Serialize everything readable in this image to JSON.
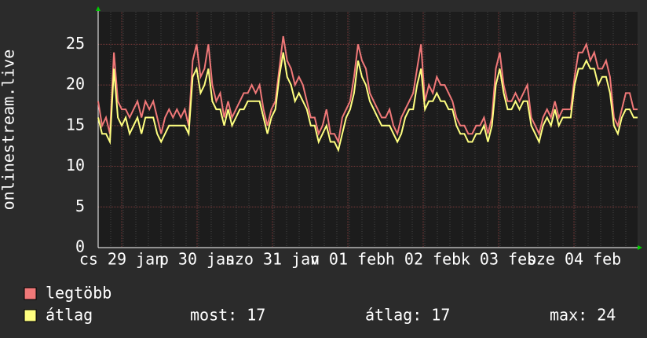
{
  "chart_data": {
    "type": "line",
    "y_label": "onlinestream.live",
    "x_labels": [
      "cs 29 jan",
      "p 30 jan",
      "szo 31 jan",
      "v 01 feb",
      "h 02 feb",
      "k 03 feb",
      "sze 04 feb"
    ],
    "ylim": [
      0,
      29
    ],
    "yticks": [
      0,
      5,
      10,
      15,
      20,
      25
    ],
    "grid": true,
    "series": [
      {
        "name": "legtöbb",
        "color": "#f07878",
        "values": [
          18,
          15,
          16,
          14,
          24,
          18,
          17,
          17,
          16,
          17,
          18,
          16,
          18,
          17,
          18,
          16,
          14,
          16,
          17,
          16,
          17,
          16,
          17,
          15,
          23,
          25,
          21,
          22,
          25,
          20,
          18,
          19,
          16,
          18,
          16,
          17,
          18,
          19,
          19,
          20,
          19,
          20,
          17,
          15,
          17,
          18,
          22,
          26,
          23,
          22,
          20,
          21,
          20,
          18,
          16,
          16,
          14,
          15,
          17,
          14,
          14,
          13,
          16,
          17,
          18,
          21,
          25,
          23,
          22,
          19,
          18,
          17,
          16,
          16,
          17,
          15,
          14,
          16,
          17,
          18,
          19,
          22,
          25,
          18,
          20,
          19,
          21,
          20,
          20,
          19,
          18,
          16,
          15,
          15,
          14,
          14,
          15,
          15,
          16,
          14,
          16,
          22,
          24,
          20,
          18,
          18,
          19,
          18,
          19,
          20,
          16,
          15,
          14,
          16,
          17,
          16,
          18,
          16,
          17,
          17,
          17,
          21,
          24,
          24,
          25,
          23,
          24,
          22,
          22,
          23,
          21,
          16,
          15,
          17,
          19,
          19,
          17,
          17
        ]
      },
      {
        "name": "átlag",
        "color": "#ffff80",
        "values": [
          16,
          14,
          14,
          13,
          22,
          16,
          15,
          16,
          14,
          15,
          16,
          14,
          16,
          16,
          16,
          14,
          13,
          14,
          15,
          15,
          15,
          15,
          15,
          14,
          21,
          22,
          19,
          20,
          22,
          18,
          17,
          17,
          15,
          17,
          15,
          16,
          17,
          17,
          18,
          18,
          18,
          18,
          16,
          14,
          16,
          17,
          21,
          24,
          21,
          20,
          18,
          19,
          18,
          17,
          15,
          15,
          13,
          14,
          15,
          13,
          13,
          12,
          14,
          16,
          17,
          19,
          23,
          21,
          20,
          18,
          17,
          16,
          15,
          15,
          15,
          14,
          13,
          14,
          16,
          17,
          17,
          20,
          22,
          17,
          18,
          18,
          19,
          18,
          18,
          17,
          17,
          15,
          14,
          14,
          13,
          13,
          14,
          14,
          15,
          13,
          15,
          20,
          22,
          19,
          17,
          17,
          18,
          17,
          18,
          18,
          15,
          14,
          13,
          15,
          16,
          15,
          17,
          15,
          16,
          16,
          16,
          20,
          22,
          22,
          23,
          22,
          22,
          20,
          21,
          21,
          19,
          15,
          14,
          16,
          17,
          17,
          16,
          16
        ]
      }
    ],
    "stats": [
      "most: 17",
      "átlag: 17",
      "max: 24"
    ]
  }
}
